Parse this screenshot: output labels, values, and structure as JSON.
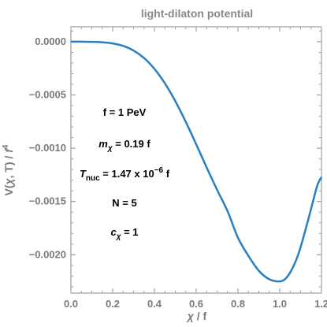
{
  "chart_data": {
    "type": "line",
    "title": "light-dilaton potential",
    "xlabel": {
      "symbol": "χ",
      "rest": " / f"
    },
    "ylabel": {
      "pre": "V(",
      "sym": "χ",
      "mid": ", T) / ",
      "f": "f",
      "exp": "4"
    },
    "xlim": [
      0.0,
      1.2
    ],
    "ylim": [
      -0.00236,
      0.00014
    ],
    "x_ticks": [
      0.0,
      0.2,
      0.4,
      0.6,
      0.8,
      1.0,
      1.2
    ],
    "x_tick_labels": [
      "0.0",
      "0.2",
      "0.4",
      "0.6",
      "0.8",
      "1.0",
      "1.2"
    ],
    "y_ticks": [
      0.0,
      -0.0005,
      -0.001,
      -0.0015,
      -0.002
    ],
    "y_tick_labels": [
      "0.0000",
      "−0.0005",
      "−0.0010",
      "−0.0015",
      "−0.0020"
    ],
    "grid": false,
    "series": [
      {
        "color": "#2a7fc0",
        "x": [
          0.0,
          0.05,
          0.1,
          0.15,
          0.2,
          0.25,
          0.3,
          0.35,
          0.4,
          0.45,
          0.5,
          0.55,
          0.6,
          0.65,
          0.7,
          0.75,
          0.8,
          0.85,
          0.9,
          0.95,
          1.0,
          1.03,
          1.06,
          1.09,
          1.12,
          1.15,
          1.18,
          1.2
        ],
        "y": [
          0.0,
          0.0,
          -1e-06,
          -5e-06,
          -1.6e-05,
          -3.9e-05,
          -8.3e-05,
          -0.000153,
          -0.000255,
          -0.00039,
          -0.000558,
          -0.000752,
          -0.000963,
          -0.00118,
          -0.00139,
          -0.00159,
          -0.00184,
          -0.00201,
          -0.00215,
          -0.00223,
          -0.00225,
          -0.00222,
          -0.00213,
          -0.00199,
          -0.00179,
          -0.00157,
          -0.00135,
          -0.00127
        ]
      }
    ],
    "annotations": {
      "f": "f = 1 PeV",
      "mchi": {
        "sym": "m",
        "sub": "χ",
        "rest": " = 0.19 f"
      },
      "tnuc": {
        "sym": "T",
        "sub": "nuc",
        "rest": " = 1.47 x 10",
        "exp": "−6",
        "tail": " f"
      },
      "n": "N = 5",
      "cchi": {
        "sym": "c",
        "sub": "χ",
        "rest": " = 1"
      }
    }
  }
}
